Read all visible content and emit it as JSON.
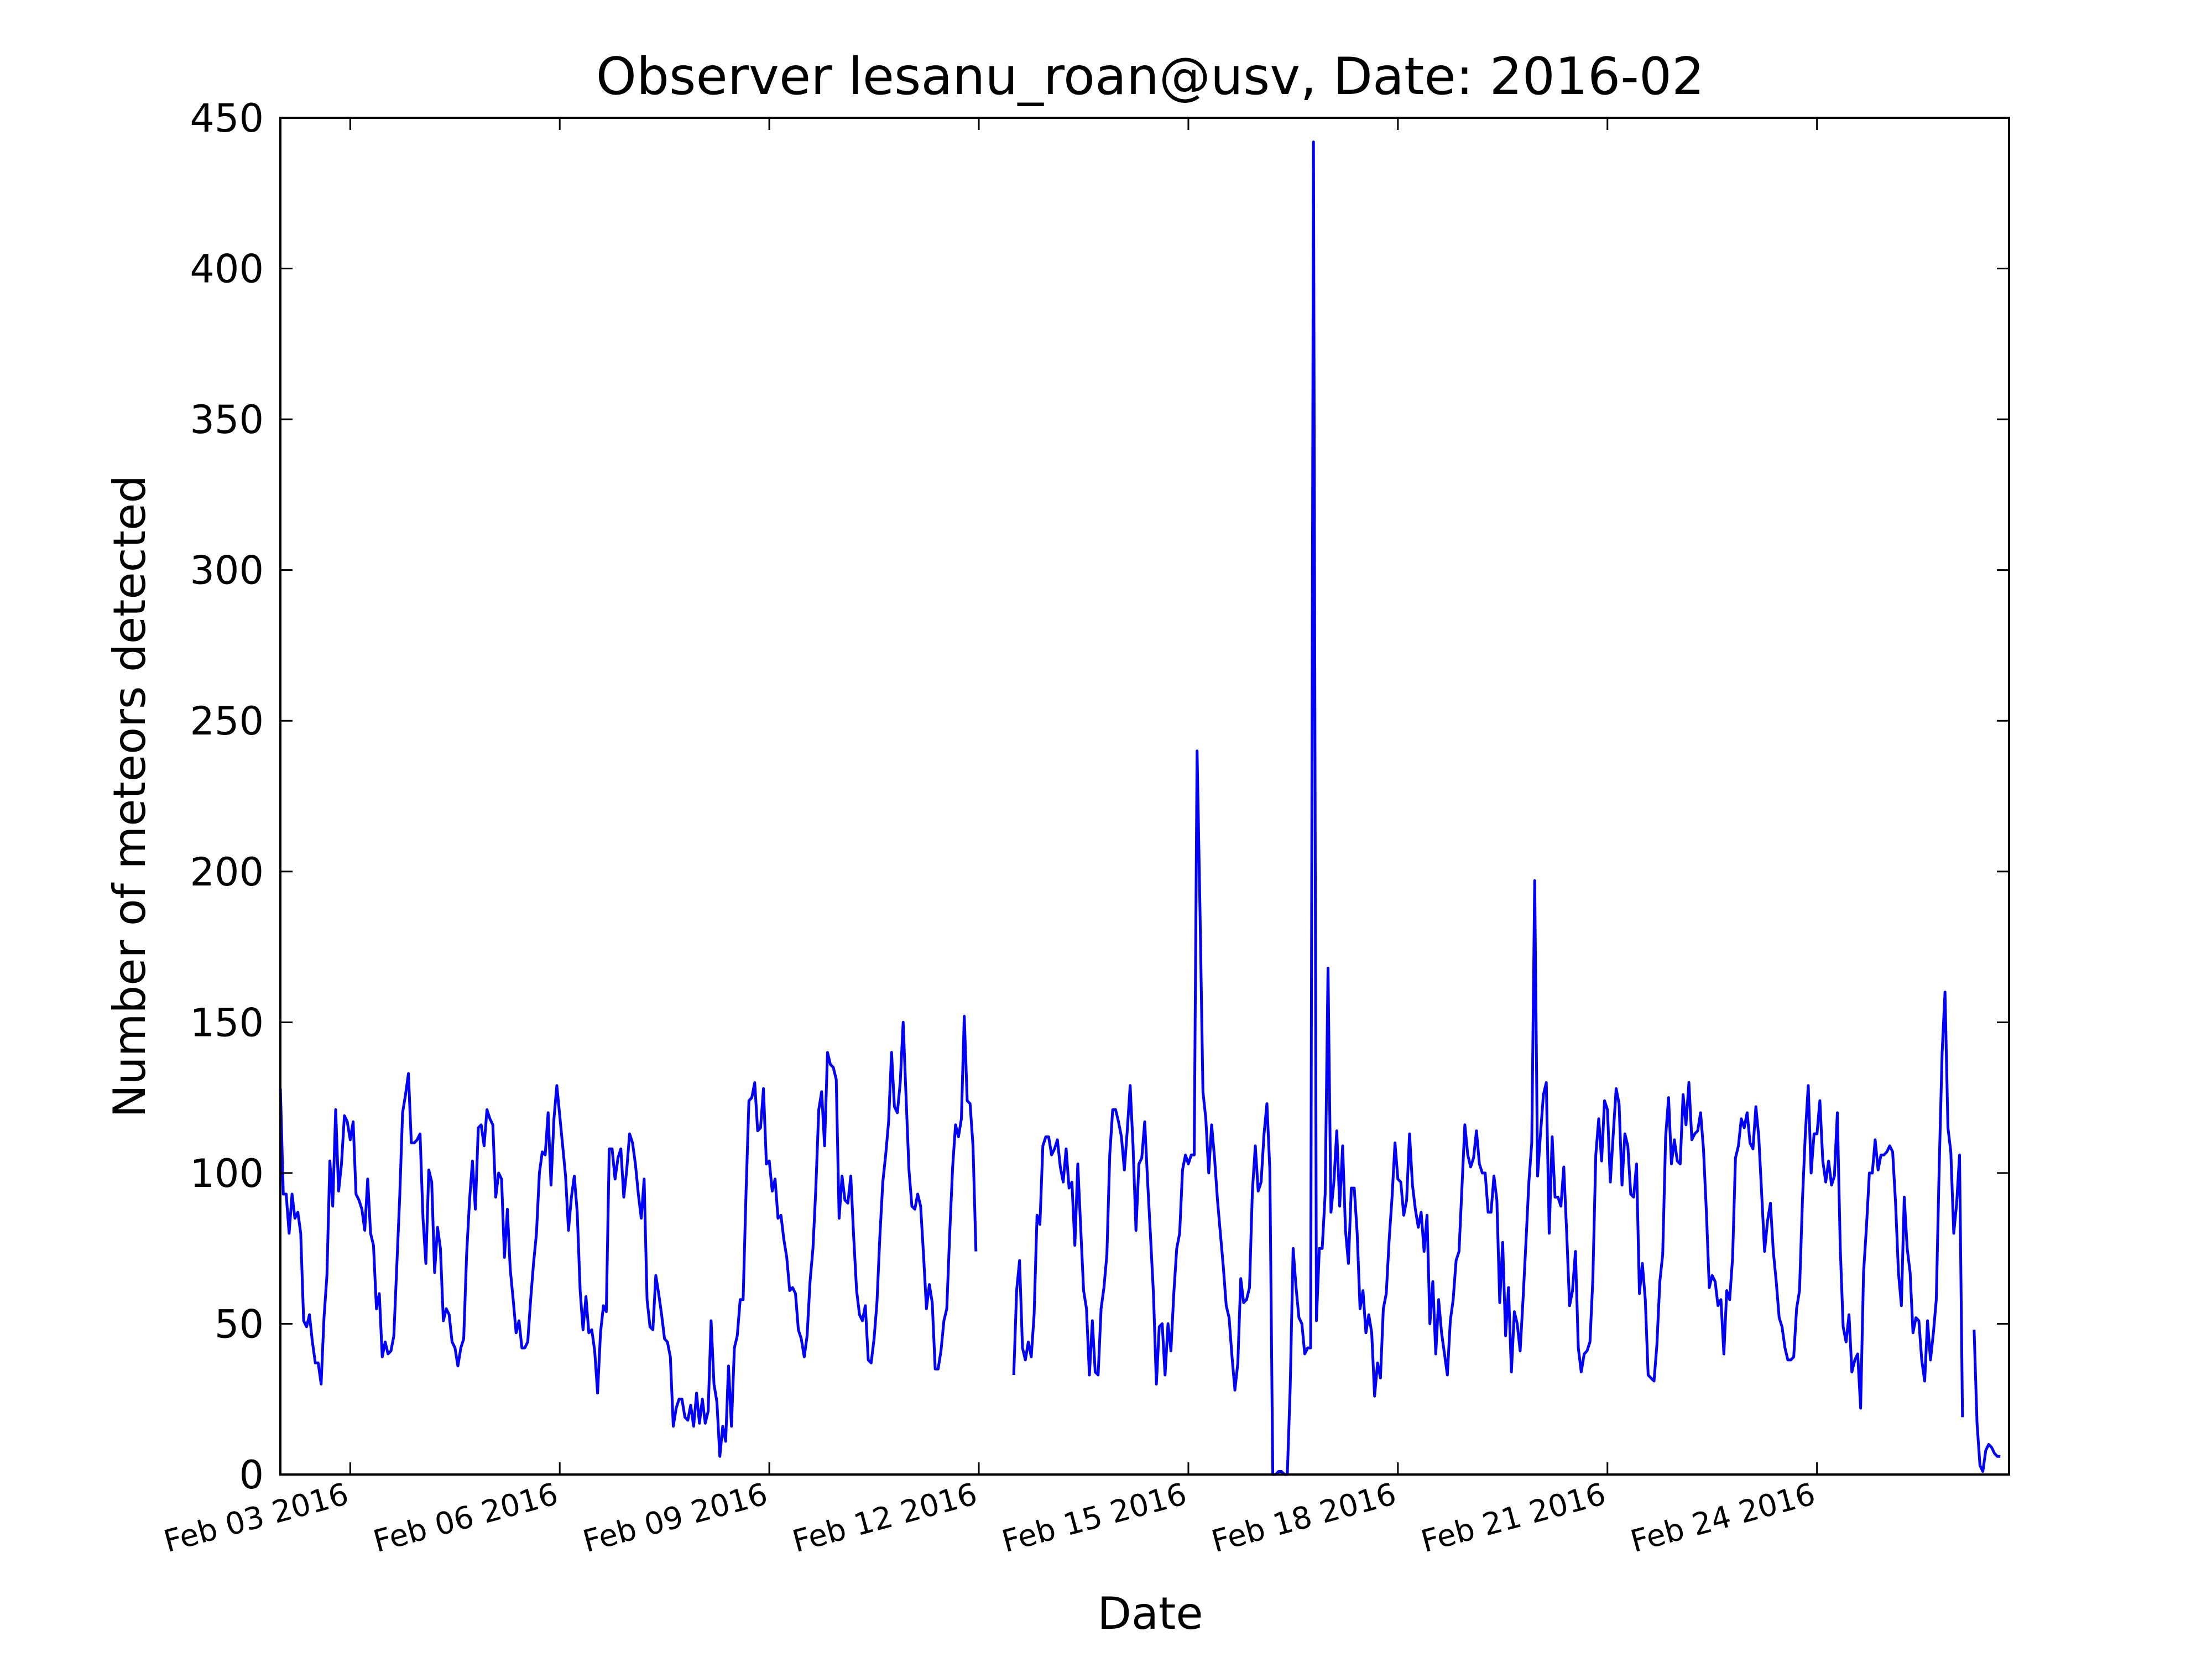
{
  "chart_data": {
    "type": "line",
    "title": "Observer lesanu_roan@usv, Date: 2016-02",
    "xlabel": "Date",
    "ylabel": "Number of meteors detected",
    "xlim": [
      "2016-02-02 00:00",
      "2016-02-26 18:00"
    ],
    "ylim": [
      0,
      450
    ],
    "yticks": [
      0,
      50,
      100,
      150,
      200,
      250,
      300,
      350,
      400,
      450
    ],
    "xticks": [
      {
        "date": "2016-02-03",
        "label": "Feb 03 2016"
      },
      {
        "date": "2016-02-06",
        "label": "Feb 06 2016"
      },
      {
        "date": "2016-02-09",
        "label": "Feb 09 2016"
      },
      {
        "date": "2016-02-12",
        "label": "Feb 12 2016"
      },
      {
        "date": "2016-02-15",
        "label": "Feb 15 2016"
      },
      {
        "date": "2016-02-18",
        "label": "Feb 18 2016"
      },
      {
        "date": "2016-02-21",
        "label": "Feb 21 2016"
      },
      {
        "date": "2016-02-24",
        "label": "Feb 24 2016"
      }
    ],
    "grid": false,
    "line_color": "#0000ff",
    "sampling": "hourly",
    "series": [
      {
        "segments": [
          {
            "start": "2016-02-02 00:00",
            "values": [
              128,
              93,
              93,
              80,
              93,
              85,
              87,
              80,
              51,
              49,
              53,
              44,
              37,
              37,
              30,
              52,
              66,
              104,
              89,
              121,
              94,
              103,
              119,
              117,
              111,
              117,
              93,
              91,
              88,
              81,
              98,
              80,
              76,
              55,
              60,
              39,
              44,
              40,
              41,
              46,
              69,
              92,
              120,
              126,
              133,
              110,
              110,
              111,
              113,
              85,
              70,
              101,
              97,
              67,
              82,
              75,
              51,
              55,
              53,
              44,
              42,
              36,
              42,
              45,
              73,
              91,
              104,
              88,
              115,
              116,
              109,
              121,
              118,
              116,
              92,
              100,
              98,
              72,
              88,
              68,
              58,
              47,
              51,
              42,
              42,
              44,
              58,
              70,
              80,
              100,
              107,
              106,
              120,
              96,
              118,
              129,
              119,
              109,
              99,
              81,
              92,
              99,
              87,
              61,
              48,
              59,
              47,
              48,
              41,
              27,
              47,
              56,
              54,
              108,
              108,
              98,
              105,
              108,
              92,
              101,
              113,
              110,
              103,
              93,
              85,
              98,
              58,
              49,
              48,
              66,
              60,
              53,
              45,
              44,
              39,
              16,
              22,
              25,
              25,
              19,
              18,
              23,
              16,
              27,
              17,
              25,
              17,
              21,
              51,
              30,
              24,
              6,
              16,
              11,
              36,
              16,
              42,
              46,
              58,
              58,
              93,
              124,
              125,
              130,
              114,
              115,
              128,
              103,
              104,
              94,
              98,
              85,
              86,
              78,
              72,
              61,
              62,
              60,
              48,
              45,
              39,
              46,
              64,
              75,
              95,
              121,
              127,
              109,
              140,
              136,
              135,
              131,
              85,
              99,
              91,
              90,
              99,
              79,
              61,
              53,
              51,
              56,
              38,
              37,
              45,
              57,
              79,
              97,
              106,
              117,
              140,
              122,
              120,
              130,
              150,
              125,
              101,
              89,
              88,
              93,
              89,
              73,
              55,
              63,
              57,
              35,
              35,
              41,
              51,
              55,
              80,
              102,
              116,
              112,
              118,
              152,
              124,
              123,
              109,
              74
            ]
          },
          {
            "start": "2016-02-12 12:00",
            "values": [
              33,
              61,
              71,
              42,
              38,
              44,
              39,
              53,
              86,
              83,
              109,
              112,
              112,
              106,
              108,
              111,
              102,
              97,
              108,
              95,
              97,
              76,
              103,
              82,
              61,
              55,
              33,
              51,
              34,
              33,
              55,
              62,
              73,
              106,
              121,
              121,
              117,
              112,
              101,
              114,
              129,
              109,
              81,
              103,
              105,
              117,
              97,
              79,
              60,
              30,
              49,
              50,
              33,
              50,
              41,
              60,
              75,
              80,
              101,
              106,
              103,
              106,
              106,
              240,
              187,
              127,
              118,
              100,
              116,
              105,
              91,
              80,
              69,
              56,
              52,
              39,
              28,
              37,
              65,
              57,
              58,
              62,
              94,
              109,
              94,
              97,
              113,
              123,
              101,
              0,
              0,
              1,
              1,
              0,
              0,
              29,
              75,
              62,
              52,
              50,
              40,
              42,
              42,
              442,
              51,
              75,
              75,
              93,
              168,
              87,
              97,
              114,
              89,
              109,
              81,
              70,
              95,
              95,
              80,
              55,
              61,
              47,
              53,
              47,
              26,
              37,
              32,
              55,
              60,
              78,
              92,
              110,
              98,
              97,
              86,
              91,
              113,
              96,
              88,
              82,
              87,
              74,
              86,
              50,
              64,
              40,
              58,
              47,
              40,
              33,
              51,
              58,
              71,
              74,
              95,
              116,
              106,
              102,
              105,
              114,
              103,
              100,
              100,
              87,
              87,
              99,
              91,
              57,
              77,
              46,
              62,
              34,
              54,
              50,
              41,
              58,
              77,
              97,
              110,
              197,
              99,
              113,
              126,
              130,
              80,
              112,
              92,
              92,
              89,
              102,
              80,
              56,
              61,
              74,
              42,
              34,
              40,
              41,
              44,
              65,
              106,
              118,
              104,
              124,
              121,
              97,
              113,
              128,
              123,
              96,
              113,
              109,
              93,
              92,
              103,
              60,
              70,
              58,
              33,
              32,
              31,
              43,
              64,
              73,
              112,
              125,
              103,
              111,
              104,
              103,
              126,
              116,
              130,
              111,
              113,
              114,
              120,
              108,
              87,
              62,
              66,
              64,
              56,
              58,
              40,
              61,
              58,
              72,
              105,
              109,
              118,
              115,
              120,
              110,
              108,
              122,
              112,
              93,
              74,
              84,
              90,
              74,
              64,
              52,
              49,
              42,
              38,
              38,
              39,
              55,
              61,
              91,
              113,
              129,
              100,
              113,
              113,
              124,
              104,
              97,
              104,
              96,
              99,
              120,
              75,
              49,
              44,
              53,
              34,
              38,
              40,
              22,
              67,
              82,
              100,
              100,
              111,
              101,
              106,
              106,
              107,
              109,
              107,
              90,
              67,
              56,
              92,
              75,
              67,
              47,
              52,
              51,
              38,
              31,
              51,
              38,
              47,
              58,
              102,
              140,
              160,
              115,
              107,
              80,
              90,
              106,
              19
            ]
          },
          {
            "start": "2016-02-26 06:00",
            "values": [
              48,
              17,
              3,
              1,
              8,
              10,
              9,
              7,
              6,
              6
            ]
          }
        ]
      }
    ]
  }
}
